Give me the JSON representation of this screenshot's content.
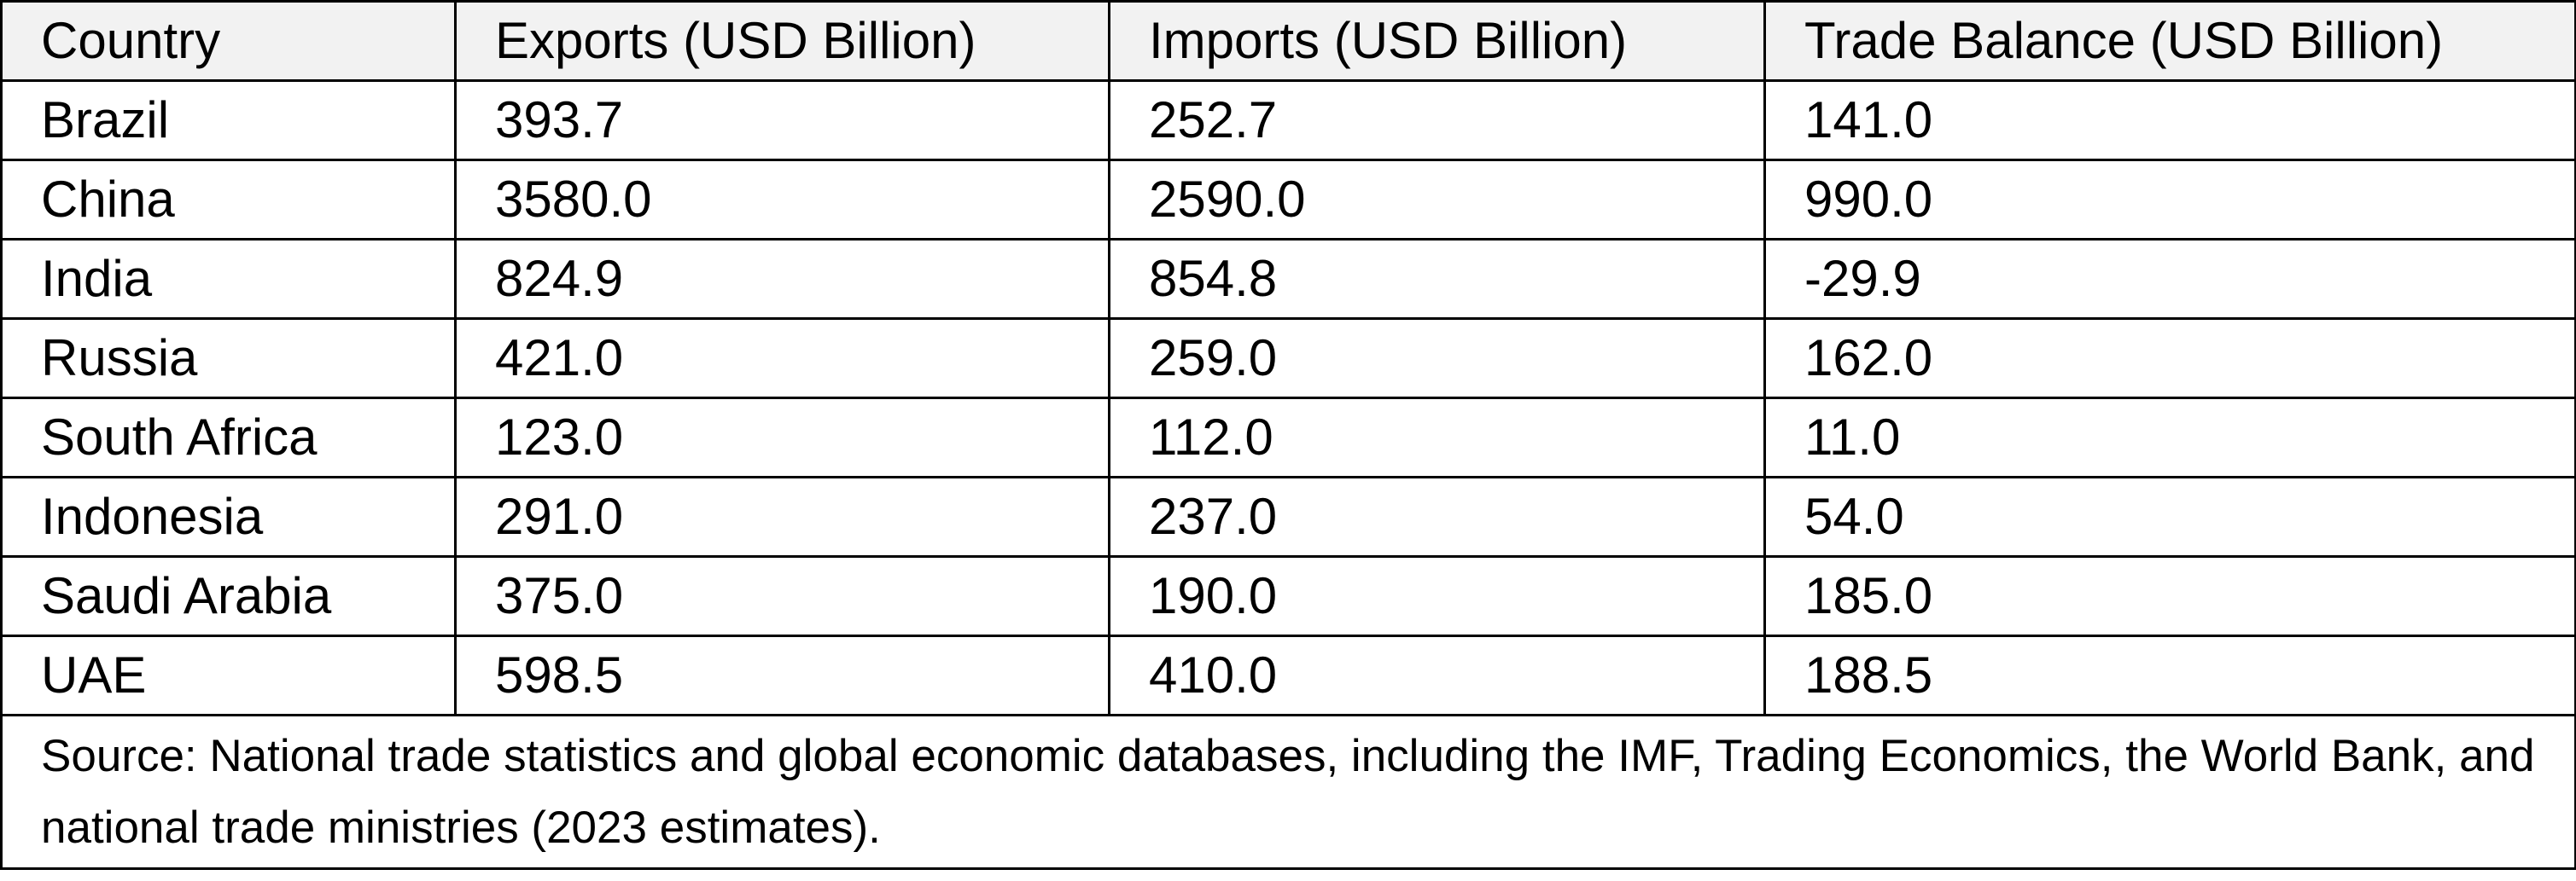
{
  "table": {
    "headers": [
      "Country",
      "Exports (USD Billion)",
      "Imports (USD Billion)",
      "Trade Balance (USD Billion)"
    ],
    "rows": [
      [
        "Brazil",
        "393.7",
        "252.7",
        "141.0"
      ],
      [
        "China",
        "3580.0",
        "2590.0",
        "990.0"
      ],
      [
        "India",
        "824.9",
        "854.8",
        "-29.9"
      ],
      [
        "Russia",
        "421.0",
        "259.0",
        "162.0"
      ],
      [
        "South Africa",
        "123.0",
        "112.0",
        "11.0"
      ],
      [
        "Indonesia",
        "291.0",
        "237.0",
        "54.0"
      ],
      [
        "Saudi Arabia",
        "375.0",
        "190.0",
        "185.0"
      ],
      [
        "UAE",
        "598.5",
        "410.0",
        "188.5"
      ]
    ],
    "source_note": "Source: National trade statistics and global economic databases, including the IMF, Trading Economics, the World Bank, and national trade ministries (2023 estimates)."
  }
}
